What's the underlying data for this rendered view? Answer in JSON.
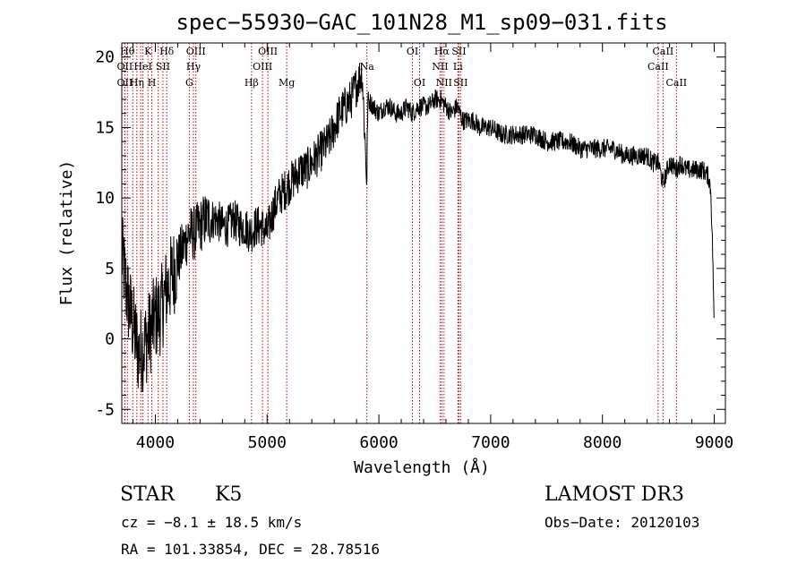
{
  "chart_data": {
    "type": "line",
    "title": "spec−55930−GAC_101N28_M1_sp09−031.fits",
    "xlabel": "Wavelength (Å)",
    "ylabel": "Flux (relative)",
    "xlim": [
      3700,
      9100
    ],
    "ylim": [
      -6,
      21
    ],
    "xticks": [
      4000,
      5000,
      6000,
      7000,
      8000,
      9000
    ],
    "yticks": [
      -5,
      0,
      5,
      10,
      15,
      20
    ],
    "grid": false,
    "series": [
      {
        "name": "spectrum",
        "x": [
          3700,
          3750,
          3800,
          3850,
          3900,
          3950,
          4000,
          4050,
          4100,
          4150,
          4200,
          4250,
          4300,
          4350,
          4400,
          4450,
          4500,
          4550,
          4600,
          4650,
          4700,
          4750,
          4800,
          4850,
          4900,
          4950,
          5000,
          5050,
          5100,
          5150,
          5200,
          5250,
          5300,
          5350,
          5400,
          5450,
          5500,
          5550,
          5600,
          5650,
          5700,
          5750,
          5800,
          5850,
          5893,
          5900,
          5950,
          6000,
          6050,
          6100,
          6150,
          6200,
          6250,
          6300,
          6350,
          6400,
          6450,
          6500,
          6550,
          6600,
          6650,
          6700,
          6750,
          6800,
          6850,
          6900,
          6950,
          7000,
          7100,
          7200,
          7300,
          7400,
          7500,
          7600,
          7700,
          7800,
          7900,
          8000,
          8100,
          8200,
          8300,
          8400,
          8450,
          8500,
          8542,
          8600,
          8662,
          8700,
          8750,
          8800,
          8850,
          8900,
          8950,
          8970,
          8990,
          9000
        ],
        "y": [
          6.0,
          3.0,
          1.0,
          -1.0,
          -0.5,
          0.5,
          1.5,
          2.0,
          3.5,
          4.5,
          5.5,
          6.5,
          7.5,
          7.5,
          8.0,
          8.5,
          8.5,
          8.5,
          8.0,
          8.0,
          8.5,
          8.0,
          8.0,
          7.5,
          8.0,
          8.0,
          7.5,
          9.0,
          10.0,
          10.5,
          11.0,
          11.5,
          12.0,
          12.0,
          12.5,
          13.0,
          13.5,
          14.0,
          15.0,
          16.0,
          16.5,
          17.0,
          18.0,
          19.0,
          11.0,
          17.0,
          16.5,
          16.0,
          16.5,
          16.5,
          16.0,
          16.0,
          16.5,
          16.0,
          16.5,
          16.5,
          16.5,
          17.0,
          17.0,
          16.5,
          16.0,
          16.5,
          15.5,
          15.5,
          15.5,
          15.0,
          15.0,
          15.0,
          14.5,
          14.5,
          14.5,
          14.5,
          14.0,
          14.0,
          14.0,
          13.5,
          13.5,
          13.5,
          13.5,
          13.0,
          13.0,
          13.0,
          12.5,
          12.5,
          11.0,
          12.5,
          12.0,
          12.5,
          12.0,
          12.0,
          12.0,
          12.0,
          11.5,
          10.5,
          5.0,
          0.0
        ]
      }
    ],
    "line_markers": [
      {
        "wavelength": 3750,
        "label": "Hθ",
        "row": 0
      },
      {
        "wavelength": 3727,
        "label": "OII",
        "row": 1
      },
      {
        "wavelength": 3727,
        "label": "OII",
        "row": 2
      },
      {
        "wavelength": 3798,
        "label": "",
        "row": -1
      },
      {
        "wavelength": 3835,
        "label": "Hη",
        "row": 2
      },
      {
        "wavelength": 3869,
        "label": "",
        "row": -1
      },
      {
        "wavelength": 3889,
        "label": "HeI",
        "row": 1
      },
      {
        "wavelength": 3934,
        "label": "K",
        "row": 0
      },
      {
        "wavelength": 3969,
        "label": "H",
        "row": 2
      },
      {
        "wavelength": 4026,
        "label": "",
        "row": -1
      },
      {
        "wavelength": 4068,
        "label": "SII",
        "row": 1
      },
      {
        "wavelength": 4102,
        "label": "Hδ",
        "row": 0
      },
      {
        "wavelength": 4304,
        "label": "G",
        "row": 2
      },
      {
        "wavelength": 4341,
        "label": "Hγ",
        "row": 1
      },
      {
        "wavelength": 4363,
        "label": "OIII",
        "row": 0
      },
      {
        "wavelength": 4861,
        "label": "Hβ",
        "row": 2
      },
      {
        "wavelength": 4959,
        "label": "OIII",
        "row": 1
      },
      {
        "wavelength": 5007,
        "label": "OIII",
        "row": 0
      },
      {
        "wavelength": 5175,
        "label": "Mg",
        "row": 2
      },
      {
        "wavelength": 5893,
        "label": "Na",
        "row": 1
      },
      {
        "wavelength": 6300,
        "label": "OI",
        "row": 0
      },
      {
        "wavelength": 6364,
        "label": "OI",
        "row": 2
      },
      {
        "wavelength": 6548,
        "label": "NII",
        "row": 1
      },
      {
        "wavelength": 6563,
        "label": "Hα",
        "row": 0
      },
      {
        "wavelength": 6583,
        "label": "NII",
        "row": 2
      },
      {
        "wavelength": 6707,
        "label": "Li",
        "row": 1
      },
      {
        "wavelength": 6716,
        "label": "SII",
        "row": 0
      },
      {
        "wavelength": 6731,
        "label": "SII",
        "row": 2
      },
      {
        "wavelength": 8498,
        "label": "CaII",
        "row": 1
      },
      {
        "wavelength": 8542,
        "label": "CaII",
        "row": 0
      },
      {
        "wavelength": 8662,
        "label": "CaII",
        "row": 2
      }
    ]
  },
  "info": {
    "class_label": "STAR",
    "subclass_label": "K5",
    "cz_text": "cz = −8.1 ± 18.5 km/s",
    "radec_text": "RA = 101.33854, DEC =  28.78516",
    "survey": "LAMOST DR3",
    "obs_date": "Obs−Date: 20120103"
  },
  "colors": {
    "spectrum": "#000000",
    "markers": "#c00000",
    "axes": "#000000"
  }
}
